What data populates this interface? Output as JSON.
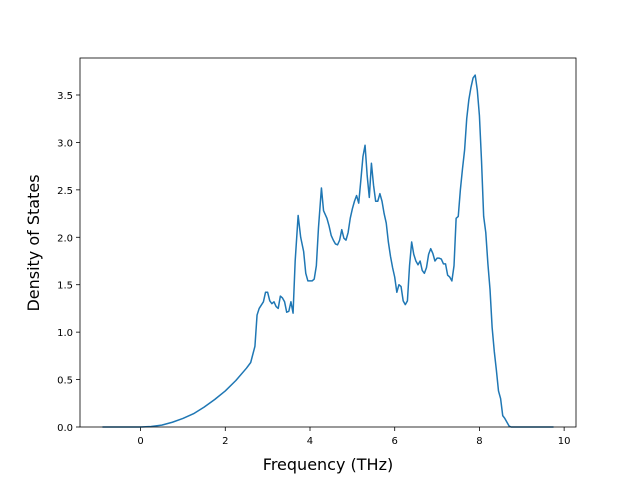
{
  "chart_data": {
    "type": "line",
    "xlabel": "Frequency (THz)",
    "ylabel": "Density of States",
    "x": [
      -0.9,
      0,
      0.25,
      0.5,
      0.75,
      1.0,
      1.25,
      1.5,
      1.75,
      2.0,
      2.25,
      2.5,
      2.6,
      2.7,
      2.75,
      2.8,
      2.9,
      2.95,
      3.0,
      3.05,
      3.1,
      3.15,
      3.2,
      3.25,
      3.3,
      3.35,
      3.4,
      3.45,
      3.5,
      3.55,
      3.6,
      3.65,
      3.72,
      3.78,
      3.85,
      3.9,
      3.95,
      4.05,
      4.1,
      4.15,
      4.2,
      4.27,
      4.32,
      4.4,
      4.45,
      4.5,
      4.55,
      4.6,
      4.65,
      4.7,
      4.75,
      4.8,
      4.85,
      4.9,
      4.95,
      5.0,
      5.05,
      5.1,
      5.15,
      5.2,
      5.25,
      5.3,
      5.35,
      5.4,
      5.45,
      5.5,
      5.55,
      5.6,
      5.65,
      5.7,
      5.75,
      5.8,
      5.85,
      5.9,
      5.95,
      6.0,
      6.05,
      6.1,
      6.15,
      6.2,
      6.25,
      6.3,
      6.35,
      6.4,
      6.45,
      6.5,
      6.55,
      6.6,
      6.65,
      6.7,
      6.75,
      6.8,
      6.85,
      6.9,
      6.95,
      7.0,
      7.05,
      7.1,
      7.15,
      7.2,
      7.25,
      7.3,
      7.35,
      7.4,
      7.45,
      7.5,
      7.55,
      7.6,
      7.65,
      7.7,
      7.75,
      7.8,
      7.85,
      7.9,
      7.95,
      8.0,
      8.05,
      8.1,
      8.15,
      8.2,
      8.25,
      8.3,
      8.35,
      8.4,
      8.45,
      8.5,
      8.55,
      8.6,
      8.65,
      8.7,
      8.75,
      8.8,
      8.85,
      9.75
    ],
    "values": [
      0,
      0,
      0.005,
      0.02,
      0.05,
      0.09,
      0.14,
      0.21,
      0.29,
      0.38,
      0.49,
      0.62,
      0.68,
      0.85,
      1.18,
      1.25,
      1.32,
      1.42,
      1.42,
      1.33,
      1.3,
      1.32,
      1.27,
      1.25,
      1.38,
      1.36,
      1.32,
      1.21,
      1.22,
      1.32,
      1.2,
      1.75,
      2.23,
      2.0,
      1.85,
      1.62,
      1.54,
      1.54,
      1.56,
      1.7,
      2.1,
      2.52,
      2.28,
      2.2,
      2.12,
      2.02,
      1.97,
      1.93,
      1.92,
      1.97,
      2.08,
      1.99,
      1.97,
      2.05,
      2.2,
      2.3,
      2.38,
      2.44,
      2.36,
      2.6,
      2.85,
      2.97,
      2.65,
      2.42,
      2.78,
      2.55,
      2.38,
      2.38,
      2.46,
      2.38,
      2.25,
      2.15,
      1.95,
      1.8,
      1.68,
      1.58,
      1.42,
      1.5,
      1.48,
      1.33,
      1.29,
      1.33,
      1.7,
      1.95,
      1.82,
      1.75,
      1.71,
      1.75,
      1.65,
      1.62,
      1.68,
      1.82,
      1.88,
      1.83,
      1.75,
      1.78,
      1.78,
      1.77,
      1.72,
      1.72,
      1.6,
      1.58,
      1.54,
      1.7,
      2.2,
      2.22,
      2.5,
      2.72,
      2.92,
      3.25,
      3.45,
      3.58,
      3.68,
      3.71,
      3.55,
      3.28,
      2.8,
      2.22,
      2.05,
      1.72,
      1.45,
      1.05,
      0.8,
      0.6,
      0.38,
      0.3,
      0.12,
      0.09,
      0.05,
      0.01,
      0,
      0,
      0,
      0
    ],
    "color": "#1f77b4",
    "xlim": [
      -1.43,
      10.28
    ],
    "ylim": [
      0,
      3.89
    ],
    "xticks": [
      0,
      2,
      4,
      6,
      8,
      10
    ],
    "yticks": [
      {
        "value": 0,
        "label": "0.0"
      },
      0.5,
      {
        "value": 1,
        "label": "1.0"
      },
      1.5,
      {
        "value": 2,
        "label": "2.0"
      },
      2.5,
      {
        "value": 3,
        "label": "3.0"
      },
      3.5
    ]
  }
}
